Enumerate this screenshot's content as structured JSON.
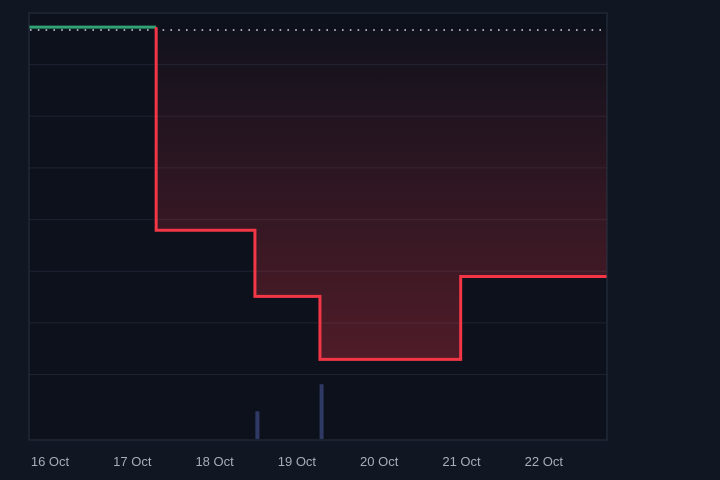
{
  "window": {
    "background": "#101622"
  },
  "chart_data": {
    "type": "line",
    "subtype": "baseline-step-with-volume",
    "title": "",
    "plot_bg": "#0d111c",
    "x_axis": {
      "tick_labels": [
        "16 Oct",
        "17 Oct",
        "18 Oct",
        "19 Oct",
        "20 Oct",
        "21 Oct",
        "22 Oct"
      ],
      "unit": "day index (0 = 16 Oct tick)",
      "text_color": "#a9adb7"
    },
    "y_axis": {
      "visible": false,
      "unit": "fraction of price-pane height measured from pane top; no numeric scale is shown in the image"
    },
    "baseline": {
      "y": 0.047,
      "style": "dotted",
      "color": "#d3d6de"
    },
    "series": [
      {
        "name": "above-baseline",
        "color": "#2fa374",
        "filled": false,
        "points": [
          {
            "d": -0.26,
            "y": 0.039
          },
          {
            "d": 1.29,
            "y": 0.039
          }
        ]
      },
      {
        "name": "below-baseline",
        "color": "#f23645",
        "filled": true,
        "fill_max_opacity": 0.3,
        "points": [
          {
            "d": 1.29,
            "y": 0.039
          },
          {
            "d": 1.29,
            "y": 0.601
          },
          {
            "d": 2.49,
            "y": 0.601
          },
          {
            "d": 2.49,
            "y": 0.784
          },
          {
            "d": 3.28,
            "y": 0.784
          },
          {
            "d": 3.28,
            "y": 0.958
          },
          {
            "d": 4.99,
            "y": 0.958
          },
          {
            "d": 4.99,
            "y": 0.729
          },
          {
            "d": 6.77,
            "y": 0.729
          }
        ]
      }
    ],
    "volume_bars": {
      "color": "#2f3a64",
      "h_unit": "fraction of volume-pane height",
      "bars": [
        {
          "d": 2.52,
          "h": 0.45
        },
        {
          "d": 3.3,
          "h": 0.89
        }
      ]
    },
    "grid": {
      "rows": 7,
      "line_color": "#1d2330",
      "border_color": "#2a3140"
    }
  }
}
